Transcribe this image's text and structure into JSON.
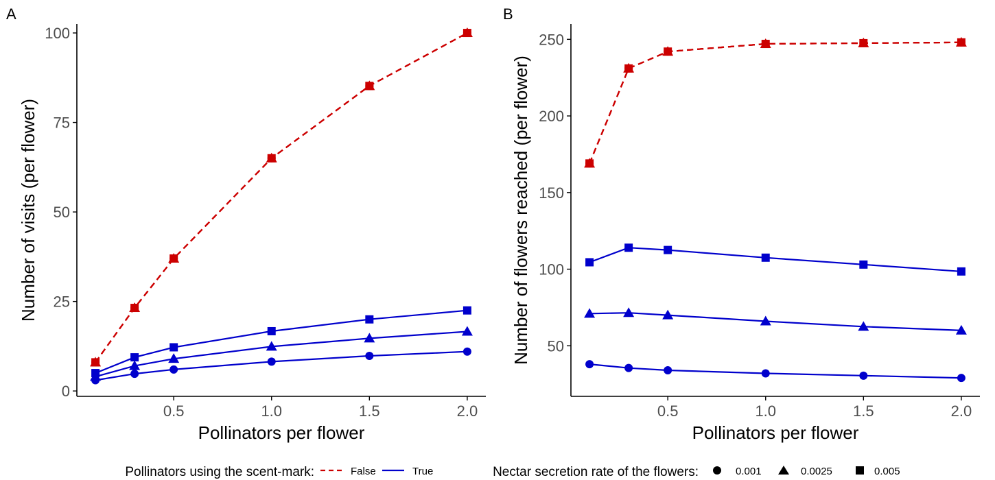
{
  "colors": {
    "scent_false": "#cc0000",
    "scent_true": "#0000cc",
    "axis": "#000000",
    "tick_text": "#4d4d4d"
  },
  "legend": {
    "linetype_title": "Pollinators using the scent-mark:",
    "linetype_items": [
      {
        "label": "False",
        "style": "dashed",
        "color": "#cc0000"
      },
      {
        "label": "True",
        "style": "solid",
        "color": "#0000cc"
      }
    ],
    "shape_title": "Nectar secretion rate of the flowers:",
    "shape_items": [
      {
        "label": "0.001",
        "shape": "circle"
      },
      {
        "label": "0.0025",
        "shape": "triangle"
      },
      {
        "label": "0.005",
        "shape": "square"
      }
    ]
  },
  "chart_data": [
    {
      "panel": "A",
      "type": "line",
      "xlabel": "Pollinators per flower",
      "ylabel": "Number of visits (per flower)",
      "x": [
        0.1,
        0.3,
        0.5,
        1.0,
        1.5,
        2.0
      ],
      "xticks": [
        "0.5",
        "1.0",
        "1.5",
        "2.0"
      ],
      "yticks": [
        "0",
        "25",
        "50",
        "75",
        "100"
      ],
      "xlim": [
        0.005,
        2.095
      ],
      "ylim": [
        -1.5,
        102.5
      ],
      "grid": false,
      "series": [
        {
          "scent": "False",
          "shape": "circle",
          "values": [
            8,
            23.2,
            37,
            65,
            85.2,
            100
          ]
        },
        {
          "scent": "False",
          "shape": "triangle",
          "values": [
            8,
            23.2,
            37,
            65,
            85.2,
            100
          ]
        },
        {
          "scent": "False",
          "shape": "square",
          "values": [
            8,
            23.2,
            37,
            65,
            85.2,
            100
          ]
        },
        {
          "scent": "True",
          "shape": "circle",
          "values": [
            3,
            4.8,
            6,
            8.2,
            9.8,
            11
          ]
        },
        {
          "scent": "True",
          "shape": "triangle",
          "values": [
            4,
            7,
            9,
            12.4,
            14.7,
            16.6
          ]
        },
        {
          "scent": "True",
          "shape": "square",
          "values": [
            5,
            9.4,
            12.2,
            16.7,
            20,
            22.5
          ]
        }
      ]
    },
    {
      "panel": "B",
      "type": "line",
      "xlabel": "Pollinators per flower",
      "ylabel": "Number of flowers reached (per flower)",
      "x": [
        0.1,
        0.3,
        0.5,
        1.0,
        1.5,
        2.0
      ],
      "xticks": [
        "0.5",
        "1.0",
        "1.5",
        "2.0"
      ],
      "yticks": [
        "50",
        "100",
        "150",
        "200",
        "250"
      ],
      "xlim": [
        0.005,
        2.095
      ],
      "ylim": [
        17,
        260
      ],
      "grid": false,
      "series": [
        {
          "scent": "False",
          "shape": "circle",
          "values": [
            169,
            231,
            242,
            247,
            247.5,
            248
          ]
        },
        {
          "scent": "False",
          "shape": "triangle",
          "values": [
            169,
            231,
            242,
            247,
            247.5,
            248
          ]
        },
        {
          "scent": "False",
          "shape": "square",
          "values": [
            169,
            231,
            242,
            247,
            247.5,
            248
          ]
        },
        {
          "scent": "True",
          "shape": "circle",
          "values": [
            38,
            35.5,
            34,
            32,
            30.5,
            29
          ]
        },
        {
          "scent": "True",
          "shape": "triangle",
          "values": [
            71,
            71.5,
            70,
            66,
            62.5,
            60
          ]
        },
        {
          "scent": "True",
          "shape": "square",
          "values": [
            104.5,
            114,
            112.5,
            107.5,
            103,
            98.5
          ]
        }
      ]
    }
  ]
}
